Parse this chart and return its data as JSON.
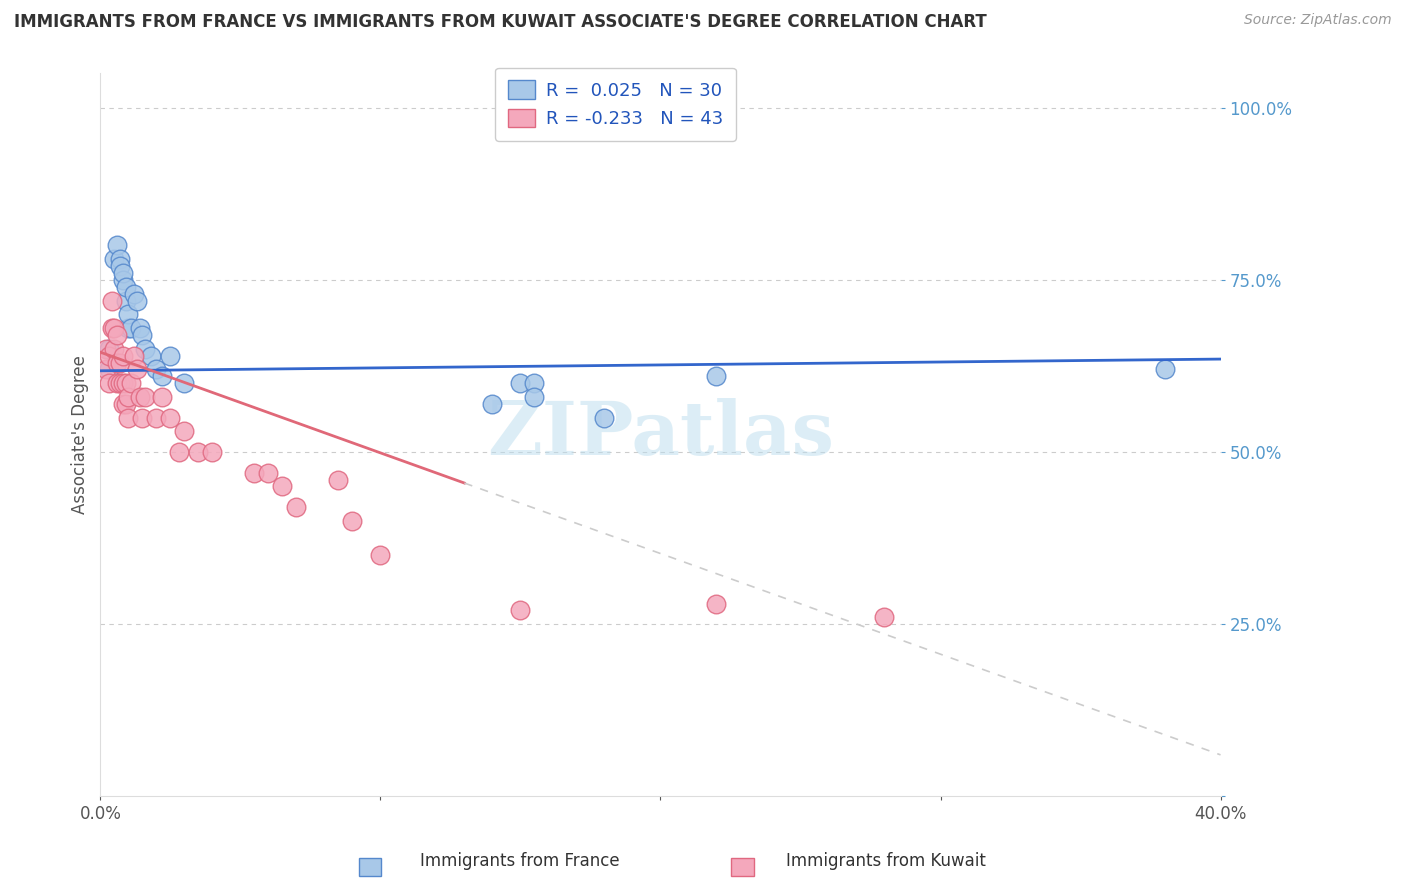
{
  "title": "IMMIGRANTS FROM FRANCE VS IMMIGRANTS FROM KUWAIT ASSOCIATE'S DEGREE CORRELATION CHART",
  "source": "Source: ZipAtlas.com",
  "ylabel": "Associate's Degree",
  "xlim": [
    0.0,
    0.4
  ],
  "ylim": [
    0.0,
    1.05
  ],
  "france_color": "#a8c8e8",
  "kuwait_color": "#f4a8bc",
  "france_edge": "#5588cc",
  "kuwait_edge": "#e06880",
  "trendline_france_color": "#3366cc",
  "trendline_kuwait_solid_color": "#e06878",
  "trendline_kuwait_dashed_color": "#cccccc",
  "legend_r_color": "#2255bb",
  "background_color": "#ffffff",
  "grid_color": "#cccccc",
  "france_x": [
    0.003,
    0.003,
    0.005,
    0.006,
    0.007,
    0.007,
    0.008,
    0.008,
    0.009,
    0.009,
    0.01,
    0.01,
    0.011,
    0.012,
    0.013,
    0.014,
    0.015,
    0.016,
    0.018,
    0.02,
    0.022,
    0.025,
    0.03,
    0.18,
    0.22,
    0.15,
    0.155,
    0.155,
    0.14,
    0.38
  ],
  "france_y": [
    0.62,
    0.65,
    0.78,
    0.8,
    0.78,
    0.77,
    0.75,
    0.76,
    0.72,
    0.74,
    0.68,
    0.7,
    0.68,
    0.73,
    0.72,
    0.68,
    0.67,
    0.65,
    0.64,
    0.62,
    0.61,
    0.64,
    0.6,
    0.55,
    0.61,
    0.6,
    0.6,
    0.58,
    0.57,
    0.62
  ],
  "kuwait_x": [
    0.002,
    0.002,
    0.003,
    0.003,
    0.004,
    0.004,
    0.005,
    0.005,
    0.006,
    0.006,
    0.006,
    0.007,
    0.007,
    0.008,
    0.008,
    0.008,
    0.009,
    0.009,
    0.01,
    0.01,
    0.011,
    0.012,
    0.013,
    0.014,
    0.015,
    0.016,
    0.02,
    0.022,
    0.025,
    0.028,
    0.03,
    0.035,
    0.04,
    0.055,
    0.06,
    0.065,
    0.07,
    0.085,
    0.09,
    0.1,
    0.15,
    0.22,
    0.28
  ],
  "kuwait_y": [
    0.62,
    0.65,
    0.6,
    0.64,
    0.68,
    0.72,
    0.65,
    0.68,
    0.6,
    0.63,
    0.67,
    0.6,
    0.63,
    0.57,
    0.6,
    0.64,
    0.57,
    0.6,
    0.55,
    0.58,
    0.6,
    0.64,
    0.62,
    0.58,
    0.55,
    0.58,
    0.55,
    0.58,
    0.55,
    0.5,
    0.53,
    0.5,
    0.5,
    0.47,
    0.47,
    0.45,
    0.42,
    0.46,
    0.4,
    0.35,
    0.27,
    0.28,
    0.26
  ]
}
